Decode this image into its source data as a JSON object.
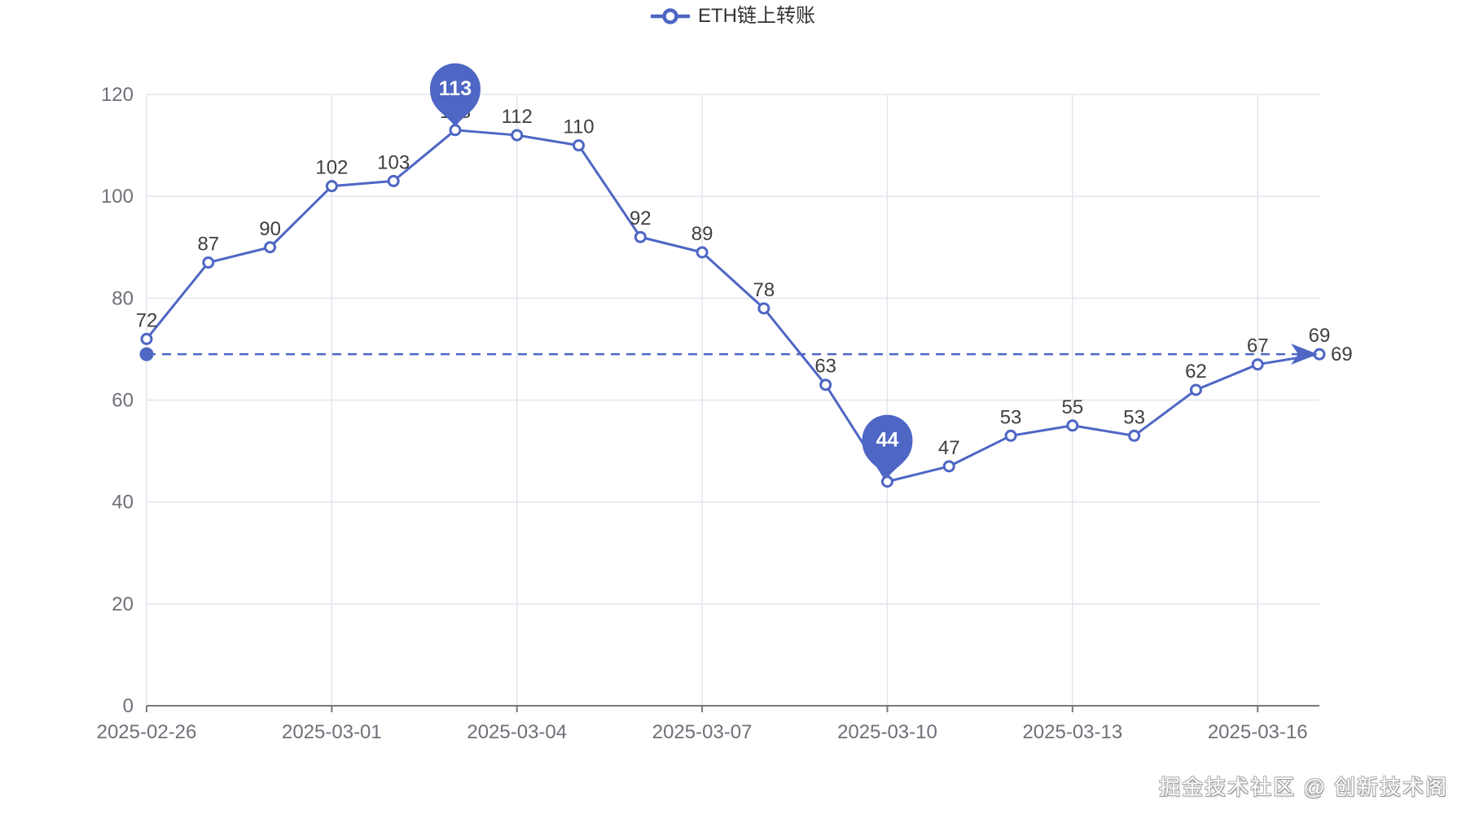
{
  "legend": {
    "label": "ETH链上转账"
  },
  "watermark": {
    "text": "掘金技术社区 @ 创新技术阁"
  },
  "colors": {
    "series": "#4e66c4",
    "axis_label": "#6e7079",
    "axis_line": "#77797c",
    "grid_line": "#e2e5ee",
    "data_label": "#3f3f3f",
    "markpoint_text": "#ffffff",
    "background": "#ffffff"
  },
  "chart_data": {
    "type": "line",
    "title": "",
    "series": [
      {
        "name": "ETH链上转账",
        "values": [
          72,
          87,
          90,
          102,
          103,
          113,
          112,
          110,
          92,
          89,
          78,
          63,
          44,
          47,
          53,
          55,
          53,
          62,
          67,
          69
        ]
      }
    ],
    "x": [
      "2025-02-26",
      "2025-02-27",
      "2025-02-28",
      "2025-03-01",
      "2025-03-02",
      "2025-03-03",
      "2025-03-04",
      "2025-03-05",
      "2025-03-06",
      "2025-03-07",
      "2025-03-08",
      "2025-03-09",
      "2025-03-10",
      "2025-03-11",
      "2025-03-12",
      "2025-03-13",
      "2025-03-14",
      "2025-03-15",
      "2025-03-16",
      "2025-03-17"
    ],
    "x_tick_indices": [
      0,
      3,
      6,
      9,
      12,
      15,
      18
    ],
    "y_ticks": [
      0,
      20,
      40,
      60,
      80,
      100,
      120
    ],
    "ylim": [
      0,
      120
    ],
    "grid": true,
    "legend_position": "top-center",
    "point_style": "hollow-circle",
    "line_style": "solid",
    "markline": {
      "value": 69,
      "label": "69",
      "style": "dashed"
    },
    "markpoints": [
      {
        "type": "max",
        "index": 5,
        "label": "113"
      },
      {
        "type": "min",
        "index": 12,
        "label": "44"
      }
    ]
  }
}
